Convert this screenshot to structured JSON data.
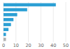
{
  "chart_data": {
    "type": "bar",
    "orientation": "horizontal",
    "values": [
      42,
      19,
      11,
      8,
      6,
      4,
      2,
      2
    ],
    "colors": [
      "#2b9fd4",
      "#2b9fd4",
      "#2b9fd4",
      "#2b9fd4",
      "#2b9fd4",
      "#2b9fd4",
      "#2b9fd4",
      "#b0b0b0"
    ],
    "xlim": [
      0,
      50
    ],
    "xticks": [
      0,
      10,
      20,
      30,
      40,
      50
    ],
    "grid": true,
    "tick_labels": "x"
  }
}
